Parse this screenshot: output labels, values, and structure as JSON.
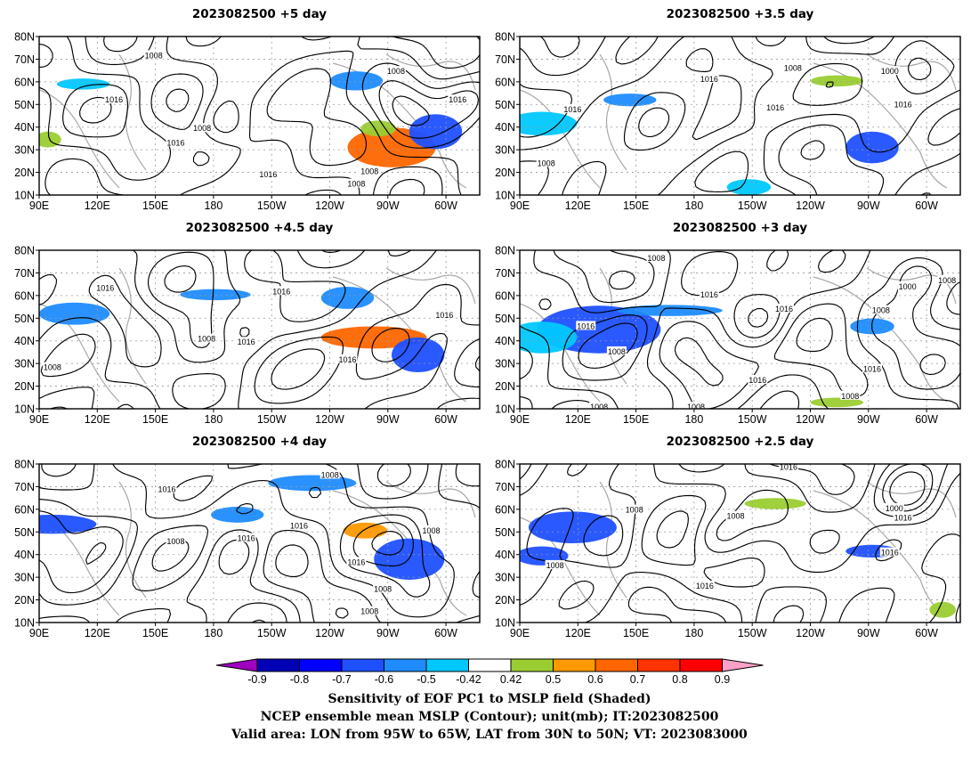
{
  "panels": [
    {
      "title": "2023082500  +5 day"
    },
    {
      "title": "2023082500  +3.5 day"
    },
    {
      "title": "2023082500  +4.5 day"
    },
    {
      "title": "2023082500  +3 day"
    },
    {
      "title": "2023082500  +4 day"
    },
    {
      "title": "2023082500  +2.5 day"
    }
  ],
  "axes": {
    "lat_labels": [
      "10N",
      "20N",
      "30N",
      "40N",
      "50N",
      "60N",
      "70N",
      "80N"
    ],
    "lon_labels": [
      "90E",
      "120E",
      "150E",
      "180",
      "150W",
      "120W",
      "90W",
      "60W"
    ]
  },
  "contour_labels": [
    [
      "1008",
      "1016",
      "1008",
      "1016",
      "1016",
      "1008",
      "1016",
      "1008",
      "1008"
    ],
    [
      "1016",
      "1008",
      "1016",
      "1000",
      "1016",
      "1016",
      "1008"
    ],
    [
      "1016",
      "1016",
      "1008",
      "1016",
      "1016",
      "1016",
      "1008"
    ],
    [
      "1008",
      "1016",
      "1008",
      "1016",
      "1000",
      "1016",
      "1016",
      "1008",
      "1008",
      "1016",
      "1008",
      "1008",
      "1008"
    ],
    [
      "1016",
      "1008",
      "1016",
      "1008",
      "1016",
      "1016",
      "1008",
      "1008",
      "1008"
    ],
    [
      "1016",
      "1008",
      "1008",
      "1000",
      "1016",
      "1016",
      "1016",
      "1008"
    ]
  ],
  "colorbar": {
    "tick_labels": [
      "-0.9",
      "-0.8",
      "-0.7",
      "-0.6",
      "-0.5",
      "-0.42",
      "0.42",
      "0.5",
      "0.6",
      "0.7",
      "0.8",
      "0.9"
    ],
    "colors": [
      "#a000c0",
      "#0000b4",
      "#0000ff",
      "#1e50ff",
      "#1e8cff",
      "#00c8ff",
      "#ffffff",
      "#9bcd32",
      "#ff9900",
      "#ff6600",
      "#ff3300",
      "#ff0000",
      "#ffa0c8"
    ]
  },
  "footer": {
    "line1": "Sensitivity of EOF PC1 to MSLP field (Shaded)",
    "line2": "NCEP ensemble mean MSLP (Contour); unit(mb); IT:2023082500",
    "line3": "Valid area: LON from 95W to 65W, LAT from 30N to 50N; VT: 2023083000"
  }
}
